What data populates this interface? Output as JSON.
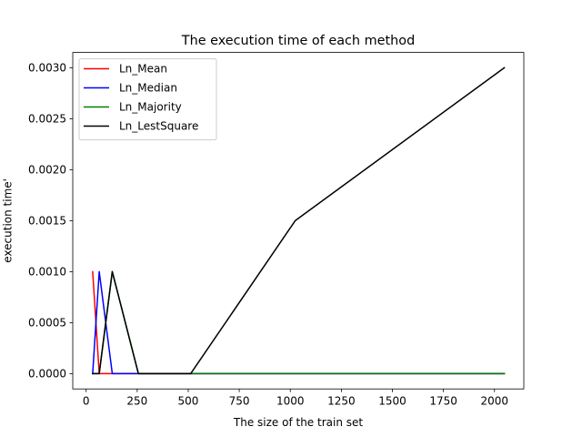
{
  "chart_data": {
    "type": "line",
    "title": "The execution time of each method",
    "xlabel": "The size of the train set",
    "ylabel": "execution time'",
    "xlim": [
      -65.6,
      2143.6
    ],
    "ylim": [
      -0.00015,
      0.00315
    ],
    "xticks": [
      0,
      250,
      500,
      750,
      1000,
      1250,
      1500,
      1750,
      2000
    ],
    "xtick_labels": [
      "0",
      "250",
      "500",
      "750",
      "1000",
      "1250",
      "1500",
      "1750",
      "2000"
    ],
    "yticks": [
      0.0,
      0.0005,
      0.001,
      0.0015,
      0.002,
      0.0025,
      0.003
    ],
    "ytick_labels": [
      "0.0000",
      "0.0005",
      "0.0010",
      "0.0015",
      "0.0020",
      "0.0025",
      "0.0030"
    ],
    "grid": false,
    "legend": "top-left",
    "x": [
      32,
      64,
      128,
      256,
      512,
      1024,
      2048
    ],
    "series": [
      {
        "name": "Ln_Mean",
        "color": "#ff0000",
        "values": [
          0.001,
          0.0,
          0.0,
          0.0,
          0.0,
          0.0,
          0.0
        ]
      },
      {
        "name": "Ln_Median",
        "color": "#0000ff",
        "values": [
          0.0,
          0.001,
          0.0,
          0.0,
          0.0,
          0.0,
          0.0
        ]
      },
      {
        "name": "Ln_Majority",
        "color": "#008000",
        "values": [
          0.0,
          0.0,
          0.001,
          0.0,
          0.0,
          0.0,
          0.0
        ]
      },
      {
        "name": "Ln_LestSquare",
        "color": "#000000",
        "values": [
          0.0,
          0.0,
          0.001,
          0.0,
          0.0,
          0.0015,
          0.003
        ]
      }
    ]
  }
}
